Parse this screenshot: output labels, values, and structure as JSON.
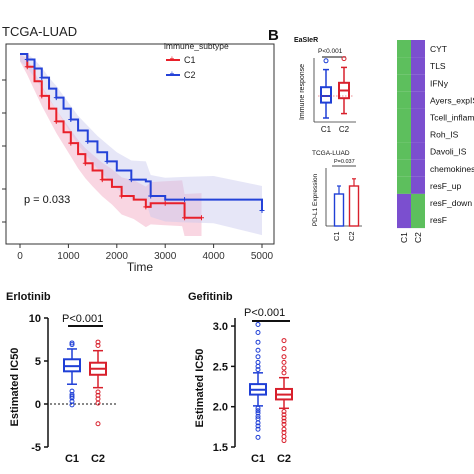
{
  "panel_b_letter": "B",
  "heatmap": {
    "rows": [
      {
        "label": "CYT",
        "c1": "green",
        "c2": "purple"
      },
      {
        "label": "TLS",
        "c1": "green",
        "c2": "purple"
      },
      {
        "label": "IFNy",
        "c1": "green",
        "c2": "purple"
      },
      {
        "label": "Ayers_expIS",
        "c1": "green",
        "c2": "purple"
      },
      {
        "label": "Tcell_inflamed",
        "c1": "green",
        "c2": "purple"
      },
      {
        "label": "Roh_IS",
        "c1": "green",
        "c2": "purple"
      },
      {
        "label": "Davoli_IS",
        "c1": "green",
        "c2": "purple"
      },
      {
        "label": "chemokines",
        "c1": "green",
        "c2": "purple"
      },
      {
        "label": "resF_up",
        "c1": "green",
        "c2": "purple"
      },
      {
        "label": "resF_down",
        "c1": "purple",
        "c2": "green"
      },
      {
        "label": "resF",
        "c1": "purple",
        "c2": "green"
      }
    ],
    "columns": [
      "C1",
      "C2"
    ],
    "colors": {
      "green": "#5dbf5d",
      "purple": "#7b4fcf"
    }
  },
  "chart_data": [
    {
      "type": "line",
      "subtype": "kaplan-meier",
      "title": "TCGA-LUAD",
      "xlabel": "Time",
      "ylabel": "",
      "xlim": [
        0,
        5000
      ],
      "ylim": [
        0,
        1
      ],
      "xticks": [
        0,
        1000,
        2000,
        3000,
        4000,
        5000
      ],
      "legend_title": "immune_subtype",
      "legend_position": "top-right",
      "annotation": "p = 0.033",
      "series": [
        {
          "name": "C1",
          "color": "#e8202a",
          "band": "#f2a3bf",
          "x": [
            0,
            150,
            300,
            450,
            600,
            750,
            900,
            1050,
            1200,
            1350,
            1500,
            1700,
            1900,
            2100,
            2350,
            2600,
            2700,
            3000,
            3350,
            3400,
            3750
          ],
          "y": [
            1.0,
            0.93,
            0.85,
            0.77,
            0.7,
            0.63,
            0.57,
            0.51,
            0.45,
            0.4,
            0.36,
            0.31,
            0.27,
            0.22,
            0.2,
            0.16,
            0.18,
            0.18,
            0.18,
            0.1,
            0.1
          ]
        },
        {
          "name": "C2",
          "color": "#2442d8",
          "band": "#c7c7ee",
          "x": [
            0,
            150,
            300,
            450,
            600,
            750,
            900,
            1050,
            1200,
            1400,
            1600,
            1800,
            2000,
            2300,
            2600,
            2700,
            3000,
            3400,
            4000,
            5000
          ],
          "y": [
            1.0,
            0.97,
            0.92,
            0.87,
            0.81,
            0.76,
            0.7,
            0.64,
            0.58,
            0.52,
            0.46,
            0.41,
            0.36,
            0.31,
            0.3,
            0.22,
            0.2,
            0.2,
            0.2,
            0.14
          ]
        }
      ]
    },
    {
      "type": "box",
      "title": "Erlotinib",
      "xlabel": "",
      "ylabel": "Estimated IC50",
      "categories": [
        "C1",
        "C2"
      ],
      "ylim": [
        -5,
        10
      ],
      "yticks": [
        -5,
        0,
        5,
        10
      ],
      "reference_line": 0,
      "annotation": "P<0.001",
      "boxes": [
        {
          "name": "C1",
          "color": "#1f3fd6",
          "min": 2.3,
          "q1": 3.8,
          "median": 4.4,
          "q3": 5.2,
          "max": 6.4,
          "outliers": [
            1.5,
            1.1,
            0.7,
            0.3,
            -0.1,
            6.9,
            7.1,
            0.9
          ]
        },
        {
          "name": "C2",
          "color": "#d8202c",
          "min": 1.9,
          "q1": 3.4,
          "median": 4.1,
          "q3": 4.8,
          "max": 6.2,
          "outliers": [
            1.4,
            1.0,
            0.6,
            0.1,
            -2.3,
            6.8,
            7.2
          ]
        }
      ]
    },
    {
      "type": "box",
      "title": "Gefitinib",
      "xlabel": "",
      "ylabel": "Estimated IC50",
      "categories": [
        "C1",
        "C2"
      ],
      "ylim": [
        1.5,
        3.1
      ],
      "yticks": [
        1.5,
        2.0,
        2.5,
        3.0
      ],
      "annotation": "P<0.001",
      "boxes": [
        {
          "name": "C1",
          "color": "#1f3fd6",
          "min": 2.01,
          "q1": 2.15,
          "median": 2.21,
          "q3": 2.28,
          "max": 2.42,
          "outliers": [
            1.98,
            1.95,
            1.92,
            1.88,
            1.85,
            1.8,
            1.76,
            1.72,
            1.62,
            2.46,
            2.5,
            2.55,
            2.62,
            2.7,
            2.8,
            2.92,
            3.02
          ]
        },
        {
          "name": "C2",
          "color": "#d8202c",
          "min": 1.98,
          "q1": 2.09,
          "median": 2.15,
          "q3": 2.22,
          "max": 2.36,
          "outliers": [
            1.94,
            1.9,
            1.86,
            1.82,
            1.78,
            1.72,
            1.68,
            1.63,
            1.58,
            2.42,
            2.48,
            2.55,
            2.62,
            2.72,
            2.82
          ]
        }
      ]
    },
    {
      "type": "box",
      "title": "EaSIeR",
      "xlabel": "",
      "ylabel": "Immune response",
      "categories": [
        "C1",
        "C2"
      ],
      "annotation": "P<0.001",
      "boxes": [
        {
          "name": "C1",
          "color": "#1f3fd6",
          "min": -1.0,
          "q1": -0.3,
          "median": 0.0,
          "q3": 0.4,
          "max": 1.2,
          "outliers": [
            1.6
          ]
        },
        {
          "name": "C2",
          "color": "#d8202c",
          "min": -0.8,
          "q1": -0.1,
          "median": 0.25,
          "q3": 0.6,
          "max": 1.3,
          "outliers": [
            1.7
          ]
        }
      ]
    },
    {
      "type": "bar",
      "title": "TCGA-LUAD",
      "xlabel": "",
      "ylabel": "PD-L1 Expression",
      "categories": [
        "C1",
        "C2"
      ],
      "annotation": "P=0.037",
      "values": [
        8,
        10
      ],
      "errors": [
        2,
        1.8
      ],
      "colors": [
        "#1f3fd6",
        "#d8202c"
      ]
    }
  ]
}
